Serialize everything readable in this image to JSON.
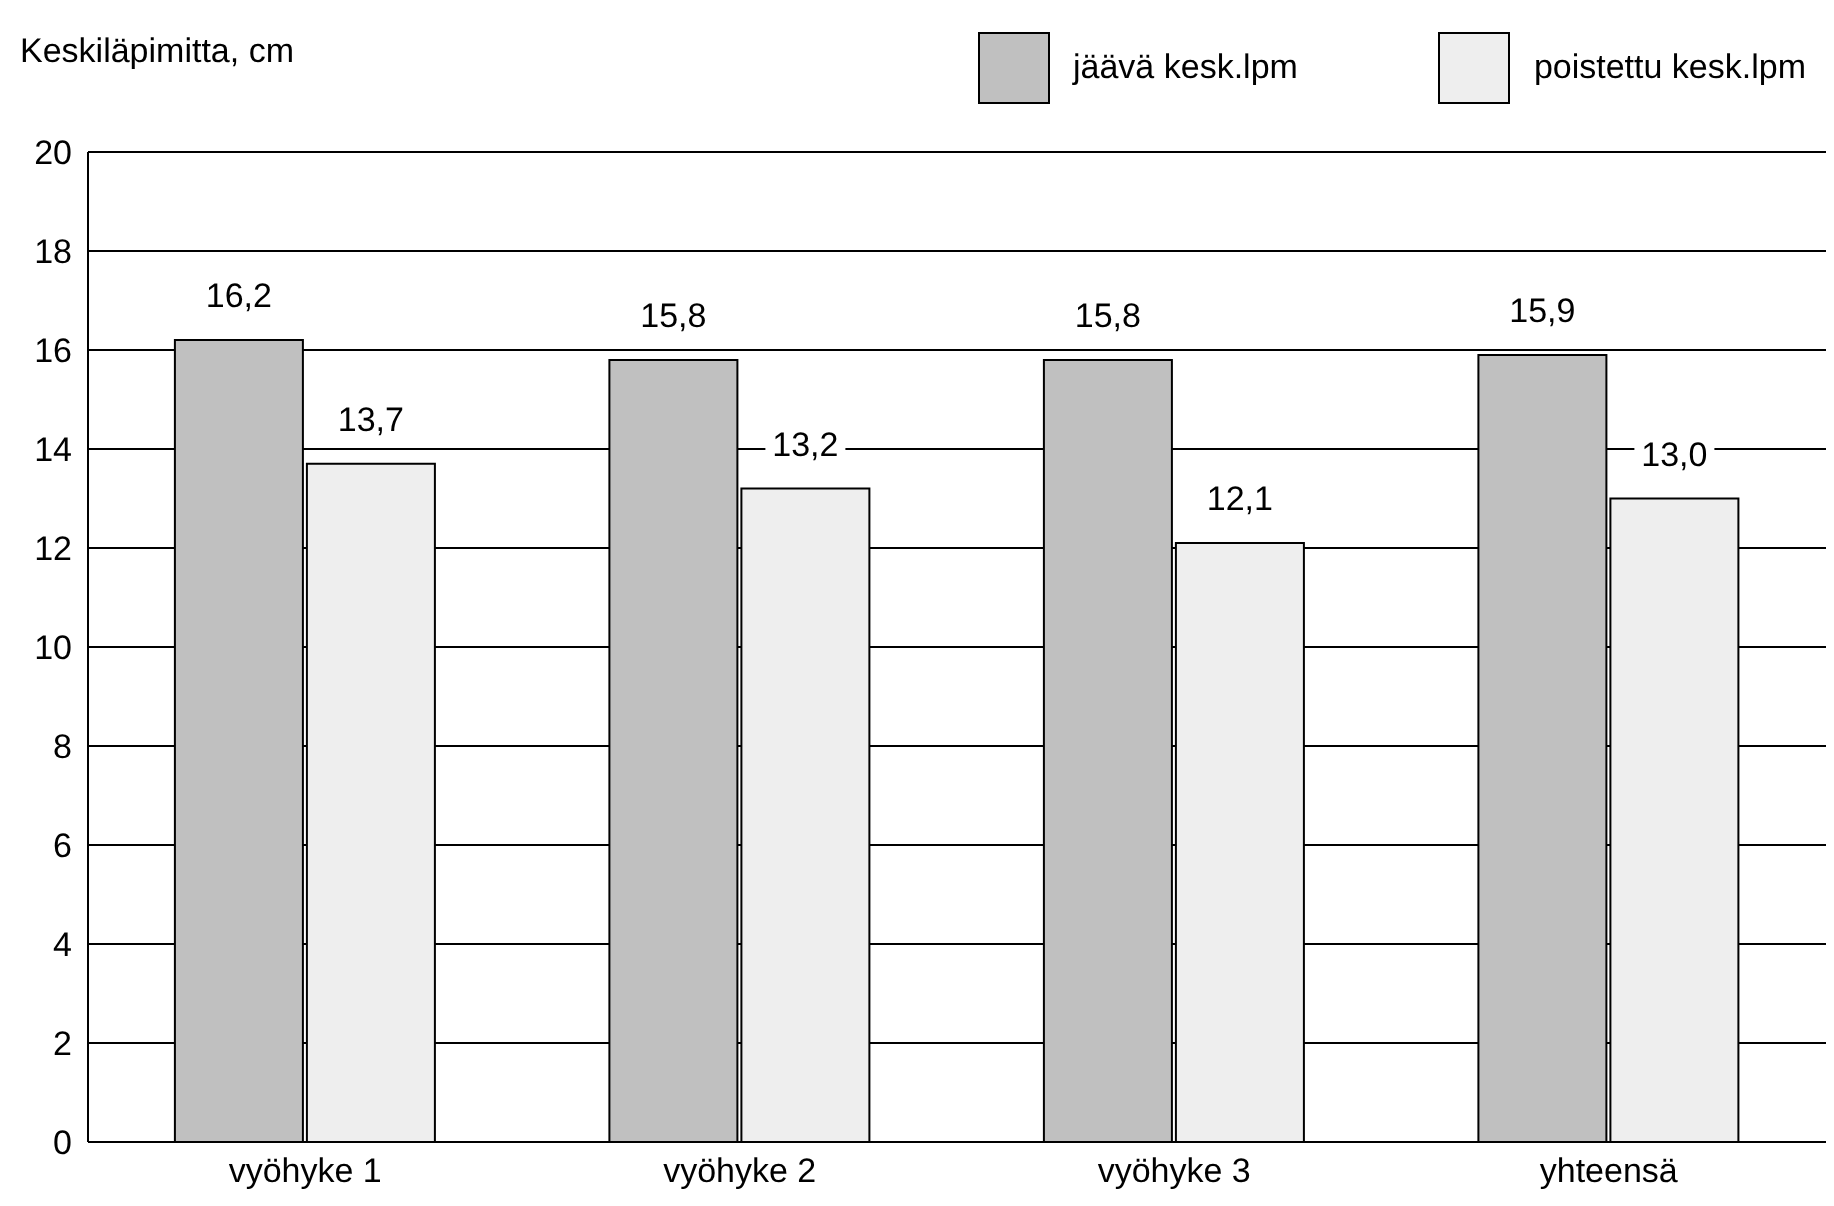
{
  "chart_data": {
    "type": "bar",
    "ylabel": "Keskiläpimitta, cm",
    "categories": [
      "vyöhyke 1",
      "vyöhyke 2",
      "vyöhyke 3",
      "yhteensä"
    ],
    "series": [
      {
        "name": "jäävä kesk.lpm",
        "color": "#c0c0c0",
        "values": [
          16.2,
          15.8,
          15.8,
          15.9
        ],
        "value_labels": [
          "16,2",
          "15,8",
          "15,8",
          "15,9"
        ]
      },
      {
        "name": "poistettu kesk.lpm",
        "color": "#eeeeee",
        "values": [
          13.7,
          13.2,
          12.1,
          13.0
        ],
        "value_labels": [
          "13,7",
          "13,2",
          "12,1",
          "13,0"
        ]
      }
    ],
    "ylim": [
      0,
      20
    ],
    "yticks": [
      0,
      2,
      4,
      6,
      8,
      10,
      12,
      14,
      16,
      18,
      20
    ],
    "grid": "y",
    "legend": "top right"
  }
}
